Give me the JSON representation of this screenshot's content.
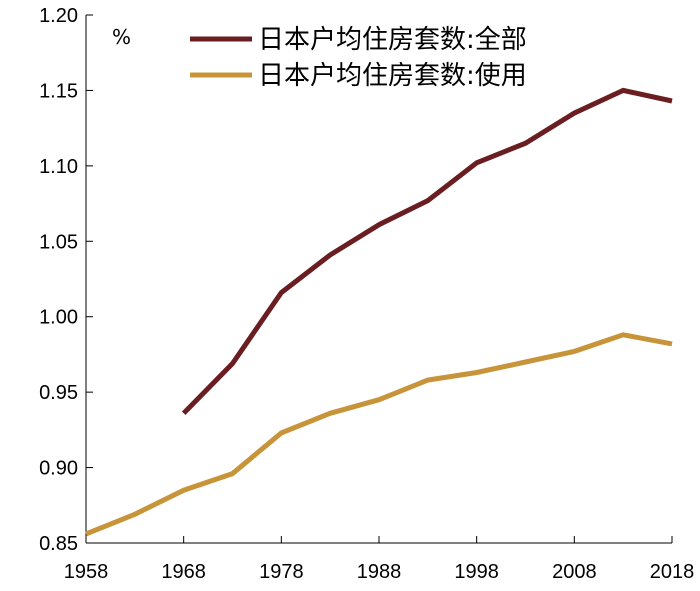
{
  "chart_data": {
    "type": "line",
    "title": "",
    "xlabel": "",
    "ylabel": "%",
    "x": [
      1958,
      1963,
      1968,
      1973,
      1978,
      1983,
      1988,
      1993,
      1998,
      2003,
      2008,
      2013,
      2018
    ],
    "xticks": [
      "1958",
      "1968",
      "1978",
      "1988",
      "1998",
      "2008",
      "2018"
    ],
    "xlim": [
      1958,
      2018
    ],
    "yticks": [
      "0.85",
      "0.90",
      "0.95",
      "1.00",
      "1.05",
      "1.10",
      "1.15",
      "1.20"
    ],
    "ylim": [
      0.85,
      1.2
    ],
    "grid": false,
    "legend_position": "top-center",
    "series": [
      {
        "name": "日本户均住房套数:全部",
        "color": "#6b1e22",
        "values": [
          null,
          null,
          0.936,
          0.969,
          1.016,
          1.041,
          1.061,
          1.077,
          1.102,
          1.115,
          1.135,
          1.15,
          1.143
        ]
      },
      {
        "name": "日本户均住房套数:使用",
        "color": "#c8943a",
        "values": [
          0.856,
          0.869,
          0.885,
          0.896,
          0.923,
          0.936,
          0.945,
          0.958,
          0.963,
          0.97,
          0.977,
          0.988,
          0.982
        ]
      }
    ]
  }
}
